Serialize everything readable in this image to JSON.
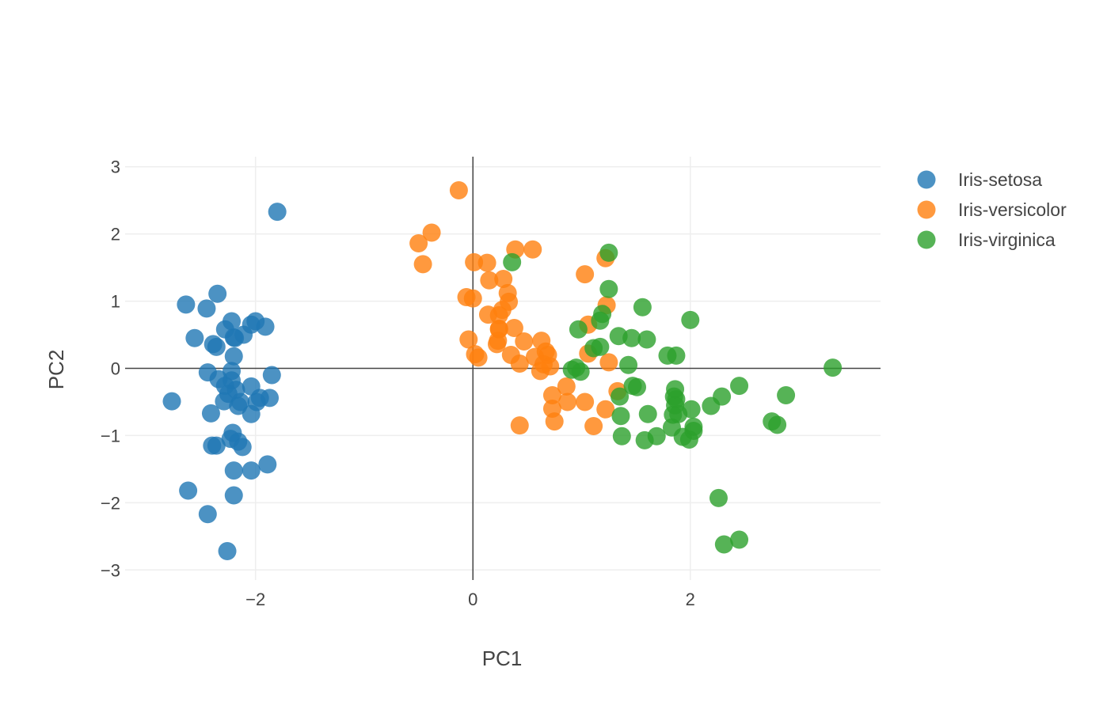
{
  "chart_data": {
    "type": "scatter",
    "xlabel": "PC1",
    "ylabel": "PC2",
    "xlim": [
      -3.2,
      3.75
    ],
    "ylim": [
      -3.15,
      3.15
    ],
    "xticks": [
      -2,
      0,
      2
    ],
    "yticks": [
      -3,
      -2,
      -1,
      0,
      1,
      2,
      3
    ],
    "xtick_labels": [
      "−2",
      "0",
      "2"
    ],
    "ytick_labels": [
      "−3",
      "−2",
      "−1",
      "0",
      "1",
      "2",
      "3"
    ],
    "grid": true,
    "zero_lines": true,
    "legend_position": "top-right",
    "series": [
      {
        "name": "Iris-setosa",
        "color": "#1f77b4",
        "points": [
          [
            -1.8,
            2.33
          ],
          [
            -2.35,
            1.11
          ],
          [
            -2.64,
            0.95
          ],
          [
            -2.45,
            0.89
          ],
          [
            -2.0,
            0.7
          ],
          [
            -2.22,
            0.7
          ],
          [
            -2.04,
            0.65
          ],
          [
            -1.91,
            0.62
          ],
          [
            -2.28,
            0.58
          ],
          [
            -2.11,
            0.5
          ],
          [
            -2.2,
            0.46
          ],
          [
            -2.56,
            0.45
          ],
          [
            -2.19,
            0.45
          ],
          [
            -2.39,
            0.36
          ],
          [
            -2.36,
            0.32
          ],
          [
            -2.2,
            0.18
          ],
          [
            -1.85,
            -0.1
          ],
          [
            -2.44,
            -0.06
          ],
          [
            -2.22,
            -0.04
          ],
          [
            -2.34,
            -0.16
          ],
          [
            -2.22,
            -0.18
          ],
          [
            -2.28,
            -0.26
          ],
          [
            -2.04,
            -0.27
          ],
          [
            -2.18,
            -0.32
          ],
          [
            -2.25,
            -0.38
          ],
          [
            -1.87,
            -0.44
          ],
          [
            -1.96,
            -0.44
          ],
          [
            -2.77,
            -0.49
          ],
          [
            -2.29,
            -0.49
          ],
          [
            -1.99,
            -0.5
          ],
          [
            -2.14,
            -0.5
          ],
          [
            -2.16,
            -0.56
          ],
          [
            -2.41,
            -0.67
          ],
          [
            -2.04,
            -0.68
          ],
          [
            -2.21,
            -0.96
          ],
          [
            -2.23,
            -1.05
          ],
          [
            -2.16,
            -1.09
          ],
          [
            -2.36,
            -1.15
          ],
          [
            -2.4,
            -1.15
          ],
          [
            -2.12,
            -1.17
          ],
          [
            -1.89,
            -1.43
          ],
          [
            -2.04,
            -1.52
          ],
          [
            -2.2,
            -1.52
          ],
          [
            -2.62,
            -1.82
          ],
          [
            -2.2,
            -1.89
          ],
          [
            -2.44,
            -2.17
          ],
          [
            -2.26,
            -2.72
          ]
        ]
      },
      {
        "name": "Iris-versicolor",
        "color": "#ff7f0e",
        "points": [
          [
            -0.13,
            2.65
          ],
          [
            -0.38,
            2.02
          ],
          [
            -0.5,
            1.86
          ],
          [
            -0.46,
            1.55
          ],
          [
            0.39,
            1.77
          ],
          [
            0.55,
            1.77
          ],
          [
            0.01,
            1.58
          ],
          [
            0.13,
            1.57
          ],
          [
            1.22,
            1.64
          ],
          [
            1.03,
            1.4
          ],
          [
            0.28,
            1.33
          ],
          [
            0.15,
            1.31
          ],
          [
            0.32,
            1.12
          ],
          [
            -0.06,
            1.06
          ],
          [
            0.0,
            1.04
          ],
          [
            0.33,
            0.99
          ],
          [
            1.23,
            0.94
          ],
          [
            0.27,
            0.87
          ],
          [
            0.14,
            0.8
          ],
          [
            0.24,
            0.79
          ],
          [
            1.06,
            0.65
          ],
          [
            0.38,
            0.6
          ],
          [
            0.24,
            0.59
          ],
          [
            0.24,
            0.58
          ],
          [
            -0.04,
            0.43
          ],
          [
            0.23,
            0.41
          ],
          [
            0.47,
            0.4
          ],
          [
            0.63,
            0.41
          ],
          [
            0.22,
            0.36
          ],
          [
            0.67,
            0.25
          ],
          [
            0.69,
            0.2
          ],
          [
            1.06,
            0.22
          ],
          [
            0.02,
            0.21
          ],
          [
            0.35,
            0.2
          ],
          [
            0.57,
            0.17
          ],
          [
            0.05,
            0.16
          ],
          [
            1.25,
            0.09
          ],
          [
            0.43,
            0.07
          ],
          [
            0.65,
            0.06
          ],
          [
            0.71,
            0.03
          ],
          [
            0.62,
            -0.04
          ],
          [
            1.33,
            -0.34
          ],
          [
            0.86,
            -0.27
          ],
          [
            0.73,
            -0.4
          ],
          [
            1.03,
            -0.5
          ],
          [
            0.87,
            -0.5
          ],
          [
            0.73,
            -0.6
          ],
          [
            1.22,
            -0.61
          ],
          [
            0.75,
            -0.79
          ],
          [
            0.43,
            -0.85
          ],
          [
            1.11,
            -0.86
          ]
        ]
      },
      {
        "name": "Iris-virginica",
        "color": "#2ca02c",
        "points": [
          [
            1.25,
            1.72
          ],
          [
            0.36,
            1.58
          ],
          [
            1.25,
            1.18
          ],
          [
            1.56,
            0.91
          ],
          [
            1.19,
            0.81
          ],
          [
            2.0,
            0.72
          ],
          [
            1.17,
            0.71
          ],
          [
            0.97,
            0.58
          ],
          [
            1.34,
            0.48
          ],
          [
            1.46,
            0.45
          ],
          [
            1.6,
            0.43
          ],
          [
            1.11,
            0.3
          ],
          [
            1.17,
            0.32
          ],
          [
            1.79,
            0.19
          ],
          [
            1.87,
            0.19
          ],
          [
            1.43,
            0.05
          ],
          [
            3.31,
            0.01
          ],
          [
            0.91,
            -0.02
          ],
          [
            0.95,
            0.01
          ],
          [
            0.99,
            -0.05
          ],
          [
            2.45,
            -0.26
          ],
          [
            1.47,
            -0.26
          ],
          [
            1.51,
            -0.28
          ],
          [
            1.86,
            -0.31
          ],
          [
            1.85,
            -0.42
          ],
          [
            2.88,
            -0.4
          ],
          [
            2.29,
            -0.42
          ],
          [
            1.35,
            -0.42
          ],
          [
            1.87,
            -0.46
          ],
          [
            2.19,
            -0.56
          ],
          [
            1.86,
            -0.55
          ],
          [
            2.01,
            -0.61
          ],
          [
            1.61,
            -0.68
          ],
          [
            1.84,
            -0.69
          ],
          [
            1.36,
            -0.71
          ],
          [
            1.89,
            -0.68
          ],
          [
            2.75,
            -0.79
          ],
          [
            2.8,
            -0.84
          ],
          [
            2.03,
            -0.87
          ],
          [
            1.83,
            -0.88
          ],
          [
            2.03,
            -0.93
          ],
          [
            1.37,
            -1.01
          ],
          [
            1.69,
            -1.01
          ],
          [
            1.93,
            -1.02
          ],
          [
            1.99,
            -1.06
          ],
          [
            1.58,
            -1.07
          ],
          [
            2.26,
            -1.93
          ],
          [
            2.45,
            -2.55
          ],
          [
            2.31,
            -2.62
          ]
        ]
      }
    ]
  }
}
